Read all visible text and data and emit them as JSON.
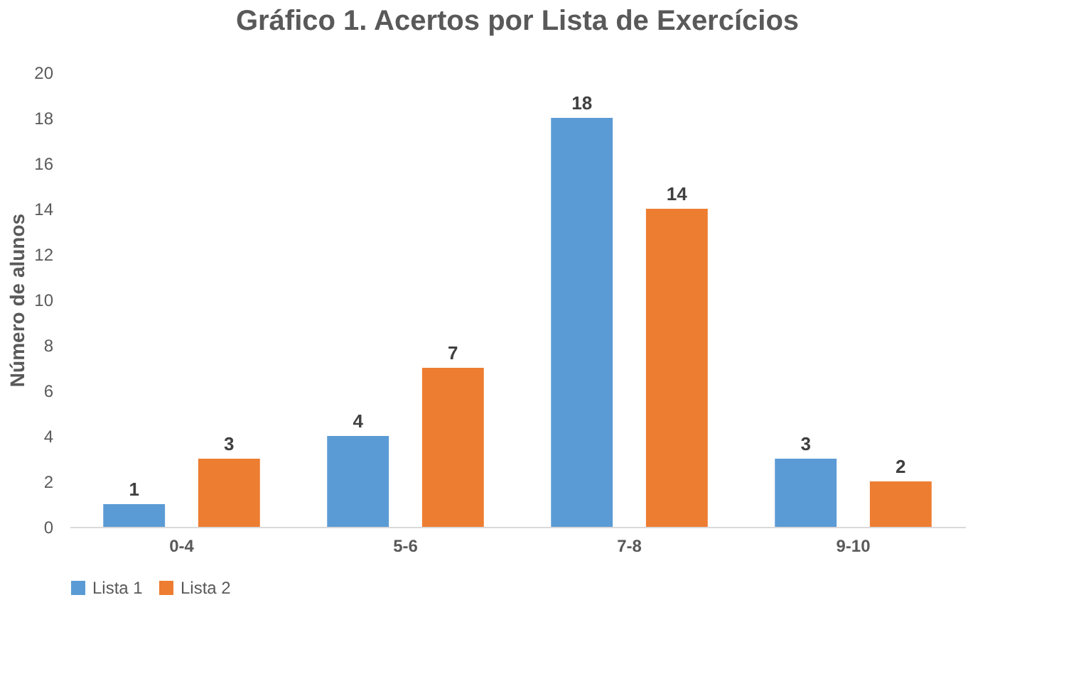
{
  "chart_data": {
    "type": "bar",
    "title": "Gráfico 1. Acertos por Lista de Exercícios",
    "ylabel": "Número de alunos",
    "categories": [
      "0-4",
      "5-6",
      "7-8",
      "9-10"
    ],
    "series": [
      {
        "name": "Lista 1",
        "color": "#5b9bd5",
        "values": [
          1,
          4,
          18,
          3
        ]
      },
      {
        "name": "Lista 2",
        "color": "#ed7d31",
        "values": [
          3,
          7,
          14,
          2
        ]
      }
    ],
    "ylim": [
      0,
      20
    ],
    "yticks": [
      0,
      2,
      4,
      6,
      8,
      10,
      12,
      14,
      16,
      18,
      20
    ],
    "grid": false,
    "legend": "bottom",
    "data_labels": true
  }
}
